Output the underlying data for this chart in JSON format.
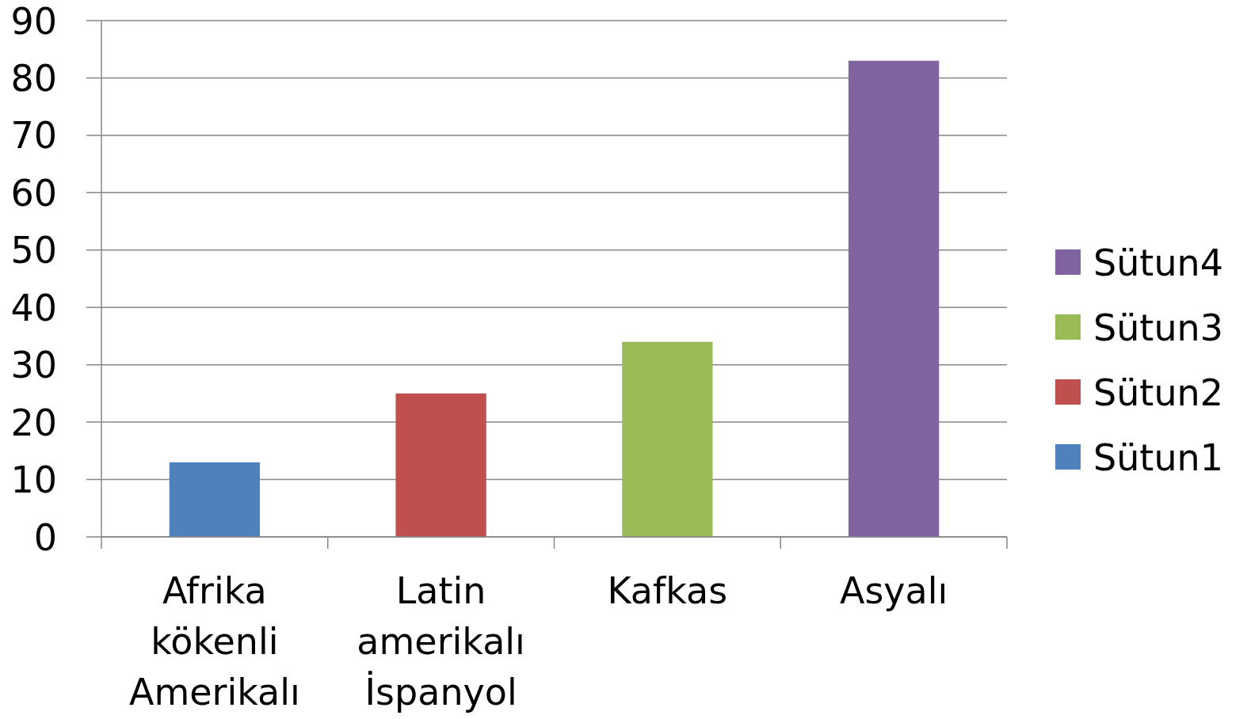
{
  "chart_data": {
    "type": "bar",
    "categories": [
      "Afrika kökenli Amerikalı",
      "Latin amerikalı İspanyol",
      "Kafkas",
      "Asyalı"
    ],
    "series": [
      {
        "name": "Sütun1",
        "color": "#4f81bd",
        "values": [
          13,
          null,
          null,
          null
        ]
      },
      {
        "name": "Sütun2",
        "color": "#c0504d",
        "values": [
          null,
          25,
          null,
          null
        ]
      },
      {
        "name": "Sütun3",
        "color": "#9bbb59",
        "values": [
          null,
          null,
          34,
          null
        ]
      },
      {
        "name": "Sütun4",
        "color": "#8064a2",
        "values": [
          null,
          null,
          null,
          83
        ]
      }
    ],
    "stacked": true,
    "ylim": [
      0,
      90
    ],
    "yticks": [
      0,
      10,
      20,
      30,
      40,
      50,
      60,
      70,
      80,
      90
    ],
    "grid": "y",
    "legend": "right"
  }
}
